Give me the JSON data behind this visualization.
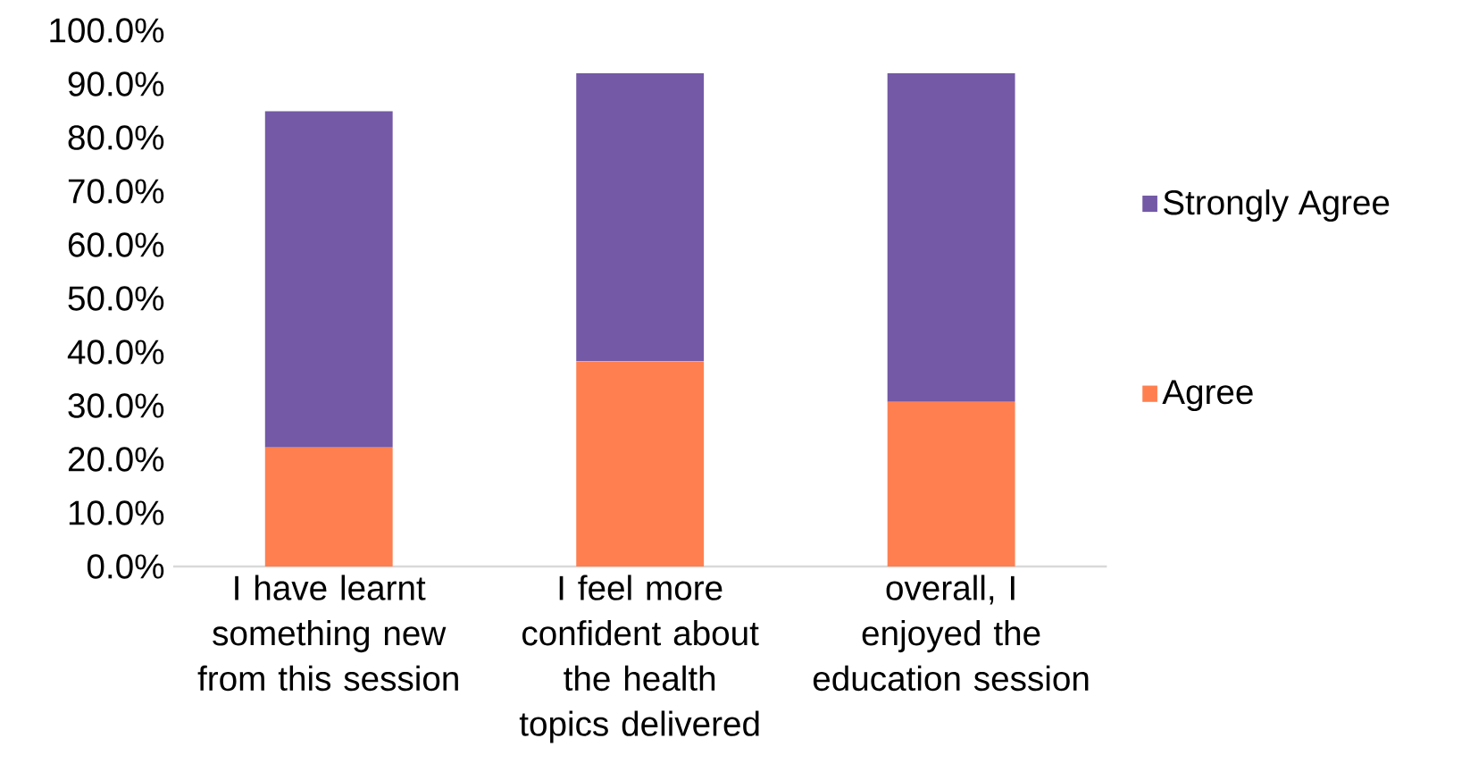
{
  "chart_data": {
    "type": "bar",
    "stacked": true,
    "legend": "right",
    "categories": [
      "I have learnt something new from this session",
      "I feel more confident about the health topics delivered",
      "overall, I enjoyed the education session"
    ],
    "series": [
      {
        "name": "Agree",
        "color": "#ff7f50",
        "values": [
          22.2,
          38.3,
          30.7
        ]
      },
      {
        "name": "Strongly Agree",
        "color": "#7359a6",
        "values": [
          62.7,
          53.7,
          61.3
        ]
      }
    ],
    "ylim": [
      0,
      100
    ],
    "yticks": [
      {
        "value": 0,
        "label": "0.0%"
      },
      {
        "value": 10,
        "label": "10.0%"
      },
      {
        "value": 20,
        "label": "20.0%"
      },
      {
        "value": 30,
        "label": "30.0%"
      },
      {
        "value": 40,
        "label": "40.0%"
      },
      {
        "value": 50,
        "label": "50.0%"
      },
      {
        "value": 60,
        "label": "60.0%"
      },
      {
        "value": 70,
        "label": "70.0%"
      },
      {
        "value": 80,
        "label": "80.0%"
      },
      {
        "value": 90,
        "label": "90.0%"
      },
      {
        "value": 100,
        "label": "100.0%"
      }
    ]
  }
}
